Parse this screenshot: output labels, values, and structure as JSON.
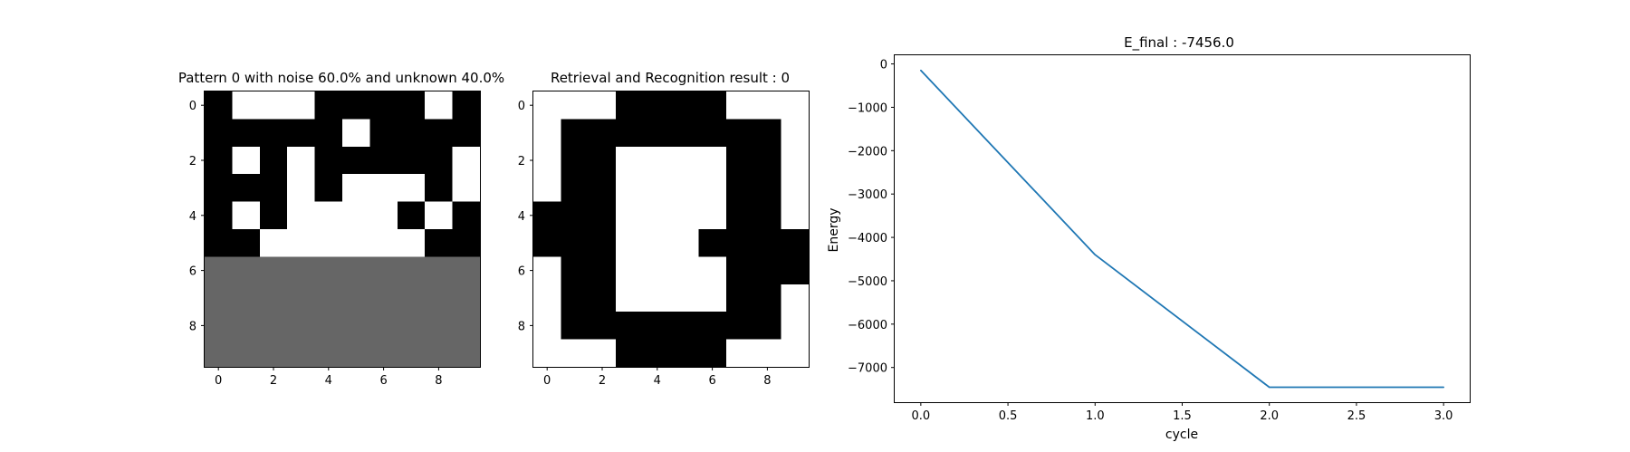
{
  "chart_data": [
    {
      "type": "heatmap",
      "title": "Pattern 0 with noise 60.0% and unknown 40.0%",
      "xticks": [
        0,
        2,
        4,
        6,
        8
      ],
      "yticks": [
        0,
        2,
        4,
        6,
        8
      ],
      "colormap": {
        "-1": "#000000",
        "0": "#666666",
        "1": "#ffffff"
      },
      "grid": [
        [
          -1,
          1,
          1,
          1,
          -1,
          -1,
          -1,
          -1,
          1,
          -1
        ],
        [
          -1,
          -1,
          -1,
          -1,
          -1,
          1,
          -1,
          -1,
          -1,
          -1
        ],
        [
          -1,
          1,
          -1,
          1,
          -1,
          -1,
          -1,
          -1,
          -1,
          1
        ],
        [
          -1,
          -1,
          -1,
          1,
          -1,
          1,
          1,
          1,
          -1,
          1
        ],
        [
          -1,
          1,
          -1,
          1,
          1,
          1,
          1,
          -1,
          1,
          -1
        ],
        [
          -1,
          -1,
          1,
          1,
          1,
          1,
          1,
          1,
          -1,
          -1
        ],
        [
          0,
          0,
          0,
          0,
          0,
          0,
          0,
          0,
          0,
          0
        ],
        [
          0,
          0,
          0,
          0,
          0,
          0,
          0,
          0,
          0,
          0
        ],
        [
          0,
          0,
          0,
          0,
          0,
          0,
          0,
          0,
          0,
          0
        ],
        [
          0,
          0,
          0,
          0,
          0,
          0,
          0,
          0,
          0,
          0
        ]
      ]
    },
    {
      "type": "heatmap",
      "title": "Retrieval and Recognition result : 0",
      "xticks": [
        0,
        2,
        4,
        6,
        8
      ],
      "yticks": [
        0,
        2,
        4,
        6,
        8
      ],
      "colormap": {
        "-1": "#000000",
        "0": "#666666",
        "1": "#ffffff"
      },
      "grid": [
        [
          1,
          1,
          1,
          -1,
          -1,
          -1,
          -1,
          1,
          1,
          1
        ],
        [
          1,
          -1,
          -1,
          -1,
          -1,
          -1,
          -1,
          -1,
          -1,
          1
        ],
        [
          1,
          -1,
          -1,
          1,
          1,
          1,
          1,
          -1,
          -1,
          1
        ],
        [
          1,
          -1,
          -1,
          1,
          1,
          1,
          1,
          -1,
          -1,
          1
        ],
        [
          -1,
          -1,
          -1,
          1,
          1,
          1,
          1,
          -1,
          -1,
          1
        ],
        [
          -1,
          -1,
          -1,
          1,
          1,
          1,
          -1,
          -1,
          -1,
          -1
        ],
        [
          1,
          -1,
          -1,
          1,
          1,
          1,
          1,
          -1,
          -1,
          -1
        ],
        [
          1,
          -1,
          -1,
          1,
          1,
          1,
          1,
          -1,
          -1,
          1
        ],
        [
          1,
          -1,
          -1,
          -1,
          -1,
          -1,
          -1,
          -1,
          -1,
          1
        ],
        [
          1,
          1,
          1,
          -1,
          -1,
          -1,
          -1,
          1,
          1,
          1
        ]
      ]
    },
    {
      "type": "line",
      "title": "E_final : -7456.0",
      "xlabel": "cycle",
      "ylabel": "Energy",
      "x": [
        0.0,
        1.0,
        2.0,
        3.0
      ],
      "series": [
        {
          "values": [
            -150,
            -4400,
            -7456,
            -7456
          ],
          "color": "#1f77b4"
        }
      ],
      "xlim": [
        -0.15,
        3.15
      ],
      "ylim": [
        -7800,
        200
      ],
      "xticks": [
        "0.0",
        "0.5",
        "1.0",
        "1.5",
        "2.0",
        "2.5",
        "3.0"
      ],
      "yticks": [
        "0",
        "−1000",
        "−2000",
        "−3000",
        "−4000",
        "−5000",
        "−6000",
        "−7000"
      ],
      "grid": false
    }
  ]
}
